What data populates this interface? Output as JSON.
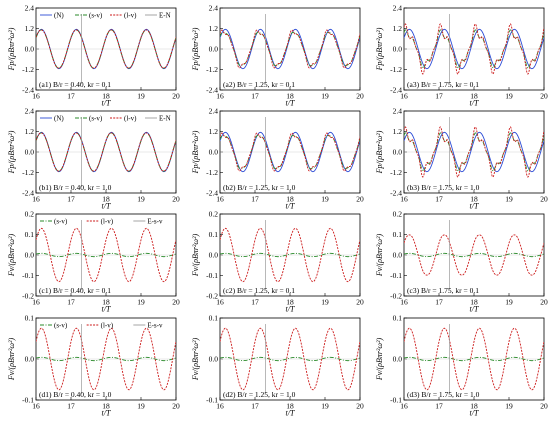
{
  "chart_data": [
    {
      "id": "a1",
      "type": "line",
      "annotation": "(a1) B/r = 0.40, kr = 0.1",
      "ylabel": "Fp/(ρBπr²ω²)",
      "xlabel": "t/T",
      "xlim": [
        16,
        20
      ],
      "ylim": [
        -2.4,
        2.4
      ],
      "xticks": [
        16,
        17,
        18,
        19,
        20
      ],
      "yticks": [
        -2.4,
        -1.2,
        0.0,
        1.2,
        2.4
      ],
      "legend": [
        "(N)",
        "(s-v)",
        "(l-v)",
        "E-N"
      ],
      "series": [
        {
          "name": "(N)",
          "amplitude": 1.15,
          "phase": 0.0,
          "noise": 0.0
        },
        {
          "name": "(s-v)",
          "amplitude": 1.12,
          "phase": 0.02,
          "noise": 0.0
        },
        {
          "name": "(l-v)",
          "amplitude": 1.13,
          "phase": 0.03,
          "noise": 0.02
        },
        {
          "name": "E-N",
          "marker_t": 17.3
        }
      ]
    },
    {
      "id": "a2",
      "type": "line",
      "annotation": "(a2) B/r = 1.25, kr = 0.1",
      "ylabel": "Fp/(ρBπr²ω²)",
      "xlabel": "t/T",
      "xlim": [
        16,
        20
      ],
      "ylim": [
        -2.4,
        2.4
      ],
      "xticks": [
        16,
        17,
        18,
        19,
        20
      ],
      "yticks": [
        -2.4,
        -1.2,
        0.0,
        1.2,
        2.4
      ],
      "series": [
        {
          "name": "(N)",
          "amplitude": 1.15,
          "phase": 0.0,
          "noise": 0.0
        },
        {
          "name": "(s-v)",
          "amplitude": 1.0,
          "phase": 0.15,
          "noise": 0.1
        },
        {
          "name": "(l-v)",
          "amplitude": 1.05,
          "phase": 0.2,
          "noise": 0.25
        },
        {
          "name": "E-N",
          "marker_t": 17.3
        }
      ]
    },
    {
      "id": "a3",
      "type": "line",
      "annotation": "(a3) B/r = 1.75, kr = 0.1",
      "ylabel": "Fp/(ρBπr²ω²)",
      "xlabel": "t/T",
      "xlim": [
        16,
        20
      ],
      "ylim": [
        -2.4,
        2.4
      ],
      "xticks": [
        16,
        17,
        18,
        19,
        20
      ],
      "yticks": [
        -2.4,
        -1.2,
        0.0,
        1.2,
        2.4
      ],
      "series": [
        {
          "name": "(N)",
          "amplitude": 1.15,
          "phase": 0.0,
          "noise": 0.0
        },
        {
          "name": "(s-v)",
          "amplitude": 0.95,
          "phase": 0.35,
          "noise": 0.35
        },
        {
          "name": "(l-v)",
          "amplitude": 1.1,
          "phase": 0.4,
          "noise": 0.55
        },
        {
          "name": "E-N",
          "marker_t": 17.3
        }
      ]
    },
    {
      "id": "b1",
      "type": "line",
      "annotation": "(b1) B/r = 0.40, kr = 1.0",
      "ylabel": "Fp/(ρBπr²ω²)",
      "xlabel": "t/T",
      "xlim": [
        16,
        20
      ],
      "ylim": [
        -2.4,
        2.4
      ],
      "xticks": [
        16,
        17,
        18,
        19,
        20
      ],
      "yticks": [
        -2.4,
        -1.2,
        0.0,
        1.2,
        2.4
      ],
      "legend": [
        "(N)",
        "(s-v)",
        "(l-v)",
        "E-N"
      ],
      "series": [
        {
          "name": "(N)",
          "amplitude": 1.15,
          "phase": 0.0,
          "noise": 0.0
        },
        {
          "name": "(s-v)",
          "amplitude": 1.12,
          "phase": 0.02,
          "noise": 0.0
        },
        {
          "name": "(l-v)",
          "amplitude": 1.13,
          "phase": 0.03,
          "noise": 0.02
        },
        {
          "name": "E-N",
          "marker_t": 17.3
        }
      ]
    },
    {
      "id": "b2",
      "type": "line",
      "annotation": "(b2) B/r = 1.25, kr = 1.0",
      "ylabel": "Fp/(ρBπr²ω²)",
      "xlabel": "t/T",
      "xlim": [
        16,
        20
      ],
      "ylim": [
        -2.4,
        2.4
      ],
      "xticks": [
        16,
        17,
        18,
        19,
        20
      ],
      "yticks": [
        -2.4,
        -1.2,
        0.0,
        1.2,
        2.4
      ],
      "series": [
        {
          "name": "(N)",
          "amplitude": 1.15,
          "phase": 0.0,
          "noise": 0.0
        },
        {
          "name": "(s-v)",
          "amplitude": 1.0,
          "phase": 0.15,
          "noise": 0.1
        },
        {
          "name": "(l-v)",
          "amplitude": 1.05,
          "phase": 0.2,
          "noise": 0.25
        },
        {
          "name": "E-N",
          "marker_t": 17.3
        }
      ]
    },
    {
      "id": "b3",
      "type": "line",
      "annotation": "(b3) B/r = 1.75, kr = 1.0",
      "ylabel": "Fp/(ρBπr²ω²)",
      "xlabel": "t/T",
      "xlim": [
        16,
        20
      ],
      "ylim": [
        -2.4,
        2.4
      ],
      "xticks": [
        16,
        17,
        18,
        19,
        20
      ],
      "yticks": [
        -2.4,
        -1.2,
        0.0,
        1.2,
        2.4
      ],
      "series": [
        {
          "name": "(N)",
          "amplitude": 1.15,
          "phase": 0.0,
          "noise": 0.0
        },
        {
          "name": "(s-v)",
          "amplitude": 0.95,
          "phase": 0.35,
          "noise": 0.35
        },
        {
          "name": "(l-v)",
          "amplitude": 1.1,
          "phase": 0.4,
          "noise": 0.55
        },
        {
          "name": "E-N",
          "marker_t": 17.3
        }
      ]
    },
    {
      "id": "c1",
      "type": "line",
      "annotation": "(c1) B/r = 0.40, kr = 0.1",
      "ylabel": "Fv/(ρBπr²ω²)",
      "xlabel": "t/T",
      "xlim": [
        16,
        20
      ],
      "ylim": [
        -0.2,
        0.2
      ],
      "xticks": [
        16,
        17,
        18,
        19,
        20
      ],
      "yticks": [
        -0.2,
        -0.1,
        0.0,
        0.1,
        0.2
      ],
      "legend": [
        "(s-v)",
        "(l-v)",
        "E-s-v"
      ],
      "series": [
        {
          "name": "(s-v)",
          "amplitude": 0.008,
          "phase": 0.0,
          "noise": 0.0
        },
        {
          "name": "(l-v)",
          "amplitude": 0.13,
          "phase": 0.0,
          "noise": 0.0
        },
        {
          "name": "E-s-v",
          "marker_t": 17.3
        }
      ]
    },
    {
      "id": "c2",
      "type": "line",
      "annotation": "(c2) B/r = 1.25, kr = 0.1",
      "ylabel": "Fv/(ρBπr²ω²)",
      "xlabel": "t/T",
      "xlim": [
        16,
        20
      ],
      "ylim": [
        -0.2,
        0.2
      ],
      "xticks": [
        16,
        17,
        18,
        19,
        20
      ],
      "yticks": [
        -0.2,
        -0.1,
        0.0,
        0.1,
        0.2
      ],
      "series": [
        {
          "name": "(s-v)",
          "amplitude": 0.008,
          "phase": 0.0,
          "noise": 0.0
        },
        {
          "name": "(l-v)",
          "amplitude": 0.13,
          "phase": 0.0,
          "noise": 0.0
        },
        {
          "name": "E-s-v",
          "marker_t": 17.3
        }
      ]
    },
    {
      "id": "c3",
      "type": "line",
      "annotation": "(c3) B/r = 1.75, kr = 0.1",
      "ylabel": "Fv/(ρBπr²ω²)",
      "xlabel": "t/T",
      "xlim": [
        16,
        20
      ],
      "ylim": [
        -0.2,
        0.2
      ],
      "xticks": [
        16,
        17,
        18,
        19,
        20
      ],
      "yticks": [
        -0.2,
        -0.1,
        0.0,
        0.1,
        0.2
      ],
      "series": [
        {
          "name": "(s-v)",
          "amplitude": 0.008,
          "phase": 0.0,
          "noise": 0.0
        },
        {
          "name": "(l-v)",
          "amplitude": 0.1,
          "phase": 0.0,
          "noise": 0.03
        },
        {
          "name": "E-s-v",
          "marker_t": 17.3
        }
      ]
    },
    {
      "id": "d1",
      "type": "line",
      "annotation": "(d1) B/r = 0.40, kr = 1.0",
      "ylabel": "Fv/(ρBπr²ω²)",
      "xlabel": "t/T",
      "xlim": [
        16,
        20
      ],
      "ylim": [
        -0.1,
        0.1
      ],
      "xticks": [
        16,
        17,
        18,
        19,
        20
      ],
      "yticks": [
        -0.1,
        0.0,
        0.1
      ],
      "legend": [
        "(s-v)",
        "(l-v)",
        "E-s-v"
      ],
      "series": [
        {
          "name": "(s-v)",
          "amplitude": 0.004,
          "phase": 0.0,
          "noise": 0.0
        },
        {
          "name": "(l-v)",
          "amplitude": 0.075,
          "phase": 0.0,
          "noise": 0.0
        },
        {
          "name": "E-s-v",
          "marker_t": 17.3
        }
      ]
    },
    {
      "id": "d2",
      "type": "line",
      "annotation": "(d2) B/r = 1.25, kr = 1.0",
      "ylabel": "Fv/(ρBπr²ω²)",
      "xlabel": "t/T",
      "xlim": [
        16,
        20
      ],
      "ylim": [
        -0.1,
        0.1
      ],
      "xticks": [
        16,
        17,
        18,
        19,
        20
      ],
      "yticks": [
        -0.1,
        0.0,
        0.1
      ],
      "series": [
        {
          "name": "(s-v)",
          "amplitude": 0.004,
          "phase": 0.0,
          "noise": 0.0
        },
        {
          "name": "(l-v)",
          "amplitude": 0.075,
          "phase": 0.0,
          "noise": 0.0
        },
        {
          "name": "E-s-v",
          "marker_t": 17.3
        }
      ]
    },
    {
      "id": "d3",
      "type": "line",
      "annotation": "(d3) B/r = 1.75, kr = 1.0",
      "ylabel": "Fv/(ρBπr²ω²)",
      "xlabel": "t/T",
      "xlim": [
        16,
        20
      ],
      "ylim": [
        -0.1,
        0.1
      ],
      "xticks": [
        16,
        17,
        18,
        19,
        20
      ],
      "yticks": [
        -0.1,
        0.0,
        0.1
      ],
      "series": [
        {
          "name": "(s-v)",
          "amplitude": 0.004,
          "phase": 0.0,
          "noise": 0.0
        },
        {
          "name": "(l-v)",
          "amplitude": 0.075,
          "phase": 0.0,
          "noise": 0.0
        },
        {
          "name": "E-s-v",
          "marker_t": 17.3
        }
      ]
    }
  ],
  "colors": {
    "N": "#2b4bd6",
    "s-v": "#2a8a2a",
    "l-v": "#cc1a1a",
    "marker": "#9a9a9a"
  }
}
